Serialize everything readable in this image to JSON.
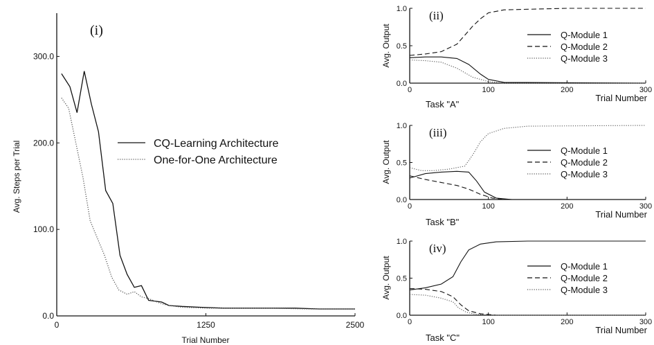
{
  "chart_data": [
    {
      "panel": "(i)",
      "type": "line",
      "xlabel": "Trial Number",
      "ylabel": "Avg. Steps per Trial",
      "xlim": [
        0,
        2500
      ],
      "ylim": [
        0,
        350
      ],
      "xticks": [
        "0",
        "1250",
        "2500"
      ],
      "yticks": [
        "0.0",
        "100.0",
        "200.0",
        "300.0"
      ],
      "legend": "center-right",
      "series": [
        {
          "name": "CQ-Learning Architecture",
          "style": "solid",
          "points": [
            [
              40,
              280
            ],
            [
              110,
              265
            ],
            [
              170,
              235
            ],
            [
              230,
              283
            ],
            [
              290,
              245
            ],
            [
              350,
              213
            ],
            [
              410,
              145
            ],
            [
              470,
              130
            ],
            [
              530,
              70
            ],
            [
              590,
              48
            ],
            [
              650,
              33
            ],
            [
              710,
              35
            ],
            [
              770,
              18
            ],
            [
              880,
              16
            ],
            [
              940,
              12
            ],
            [
              1050,
              11
            ],
            [
              1200,
              10
            ],
            [
              1400,
              9
            ],
            [
              1600,
              9
            ],
            [
              1800,
              9
            ],
            [
              2000,
              9
            ],
            [
              2200,
              8
            ],
            [
              2500,
              8
            ]
          ]
        },
        {
          "name": "One-for-One Architecture",
          "style": "dotted",
          "points": [
            [
              40,
              252
            ],
            [
              100,
              240
            ],
            [
              160,
              200
            ],
            [
              220,
              160
            ],
            [
              280,
              110
            ],
            [
              340,
              90
            ],
            [
              400,
              70
            ],
            [
              460,
              45
            ],
            [
              520,
              30
            ],
            [
              590,
              25
            ],
            [
              650,
              28
            ],
            [
              710,
              22
            ],
            [
              770,
              20
            ],
            [
              880,
              14
            ],
            [
              940,
              12
            ],
            [
              1050,
              10
            ],
            [
              1250,
              9
            ],
            [
              1500,
              9
            ],
            [
              1800,
              9
            ],
            [
              2100,
              8
            ],
            [
              2500,
              8
            ]
          ]
        }
      ]
    },
    {
      "panel": "(ii)",
      "type": "line",
      "title": "Task \"A\"",
      "xlabel": "Trial Number",
      "ylabel": "Avg. Output",
      "xlim": [
        0,
        300
      ],
      "ylim": [
        0,
        1
      ],
      "xticks": [
        "0",
        "100",
        "200",
        "300"
      ],
      "yticks": [
        "0.0",
        "0.5",
        "1.0"
      ],
      "legend": "right",
      "series": [
        {
          "name": "Q-Module 1",
          "style": "solid",
          "points": [
            [
              0,
              0.34
            ],
            [
              20,
              0.35
            ],
            [
              40,
              0.35
            ],
            [
              60,
              0.33
            ],
            [
              75,
              0.25
            ],
            [
              90,
              0.12
            ],
            [
              100,
              0.05
            ],
            [
              120,
              0.01
            ],
            [
              300,
              0.0
            ]
          ]
        },
        {
          "name": "Q-Module 2",
          "style": "dashed",
          "points": [
            [
              0,
              0.37
            ],
            [
              20,
              0.39
            ],
            [
              40,
              0.42
            ],
            [
              60,
              0.52
            ],
            [
              70,
              0.64
            ],
            [
              80,
              0.76
            ],
            [
              90,
              0.86
            ],
            [
              100,
              0.94
            ],
            [
              120,
              0.98
            ],
            [
              200,
              1.0
            ],
            [
              300,
              1.0
            ]
          ]
        },
        {
          "name": "Q-Module 3",
          "style": "dotted",
          "points": [
            [
              0,
              0.31
            ],
            [
              20,
              0.3
            ],
            [
              40,
              0.28
            ],
            [
              60,
              0.2
            ],
            [
              80,
              0.08
            ],
            [
              100,
              0.02
            ],
            [
              120,
              0.0
            ],
            [
              300,
              0.0
            ]
          ]
        }
      ]
    },
    {
      "panel": "(iii)",
      "type": "line",
      "title": "Task \"B\"",
      "xlabel": "Trial Number",
      "ylabel": "Avg. Output",
      "xlim": [
        0,
        300
      ],
      "ylim": [
        0,
        1
      ],
      "xticks": [
        "0",
        "100",
        "200",
        "300"
      ],
      "yticks": [
        "0.0",
        "0.5",
        "1.0"
      ],
      "legend": "right",
      "series": [
        {
          "name": "Q-Module 1",
          "style": "solid",
          "points": [
            [
              0,
              0.29
            ],
            [
              20,
              0.35
            ],
            [
              40,
              0.37
            ],
            [
              60,
              0.38
            ],
            [
              75,
              0.37
            ],
            [
              85,
              0.25
            ],
            [
              95,
              0.1
            ],
            [
              110,
              0.02
            ],
            [
              130,
              0.0
            ],
            [
              300,
              0.0
            ]
          ]
        },
        {
          "name": "Q-Module 2",
          "style": "dashed",
          "points": [
            [
              0,
              0.32
            ],
            [
              20,
              0.27
            ],
            [
              40,
              0.23
            ],
            [
              60,
              0.19
            ],
            [
              75,
              0.14
            ],
            [
              90,
              0.07
            ],
            [
              105,
              0.02
            ],
            [
              120,
              0.0
            ],
            [
              300,
              0.0
            ]
          ]
        },
        {
          "name": "Q-Module 3",
          "style": "dotted",
          "points": [
            [
              0,
              0.43
            ],
            [
              15,
              0.39
            ],
            [
              30,
              0.39
            ],
            [
              50,
              0.41
            ],
            [
              70,
              0.45
            ],
            [
              80,
              0.6
            ],
            [
              90,
              0.78
            ],
            [
              100,
              0.89
            ],
            [
              120,
              0.96
            ],
            [
              150,
              0.99
            ],
            [
              300,
              1.0
            ]
          ]
        }
      ]
    },
    {
      "panel": "(iv)",
      "type": "line",
      "title": "Task \"C\"",
      "xlabel": "Trial Number",
      "ylabel": "Avg. Output",
      "xlim": [
        0,
        300
      ],
      "ylim": [
        0,
        1
      ],
      "xticks": [
        "0",
        "100",
        "200",
        "300"
      ],
      "yticks": [
        "0.0",
        "0.5",
        "1.0"
      ],
      "legend": "right",
      "series": [
        {
          "name": "Q-Module 1",
          "style": "solid",
          "points": [
            [
              0,
              0.34
            ],
            [
              20,
              0.37
            ],
            [
              40,
              0.42
            ],
            [
              55,
              0.52
            ],
            [
              65,
              0.72
            ],
            [
              75,
              0.88
            ],
            [
              90,
              0.96
            ],
            [
              110,
              0.99
            ],
            [
              150,
              1.0
            ],
            [
              300,
              1.0
            ]
          ]
        },
        {
          "name": "Q-Module 2",
          "style": "dashed",
          "points": [
            [
              0,
              0.36
            ],
            [
              20,
              0.35
            ],
            [
              40,
              0.32
            ],
            [
              55,
              0.25
            ],
            [
              65,
              0.14
            ],
            [
              75,
              0.06
            ],
            [
              90,
              0.02
            ],
            [
              110,
              0.0
            ],
            [
              300,
              0.0
            ]
          ]
        },
        {
          "name": "Q-Module 3",
          "style": "dotted",
          "points": [
            [
              0,
              0.28
            ],
            [
              20,
              0.27
            ],
            [
              40,
              0.23
            ],
            [
              55,
              0.18
            ],
            [
              62,
              0.1
            ],
            [
              72,
              0.04
            ],
            [
              85,
              0.01
            ],
            [
              110,
              0.0
            ],
            [
              300,
              0.0
            ]
          ]
        }
      ]
    }
  ]
}
